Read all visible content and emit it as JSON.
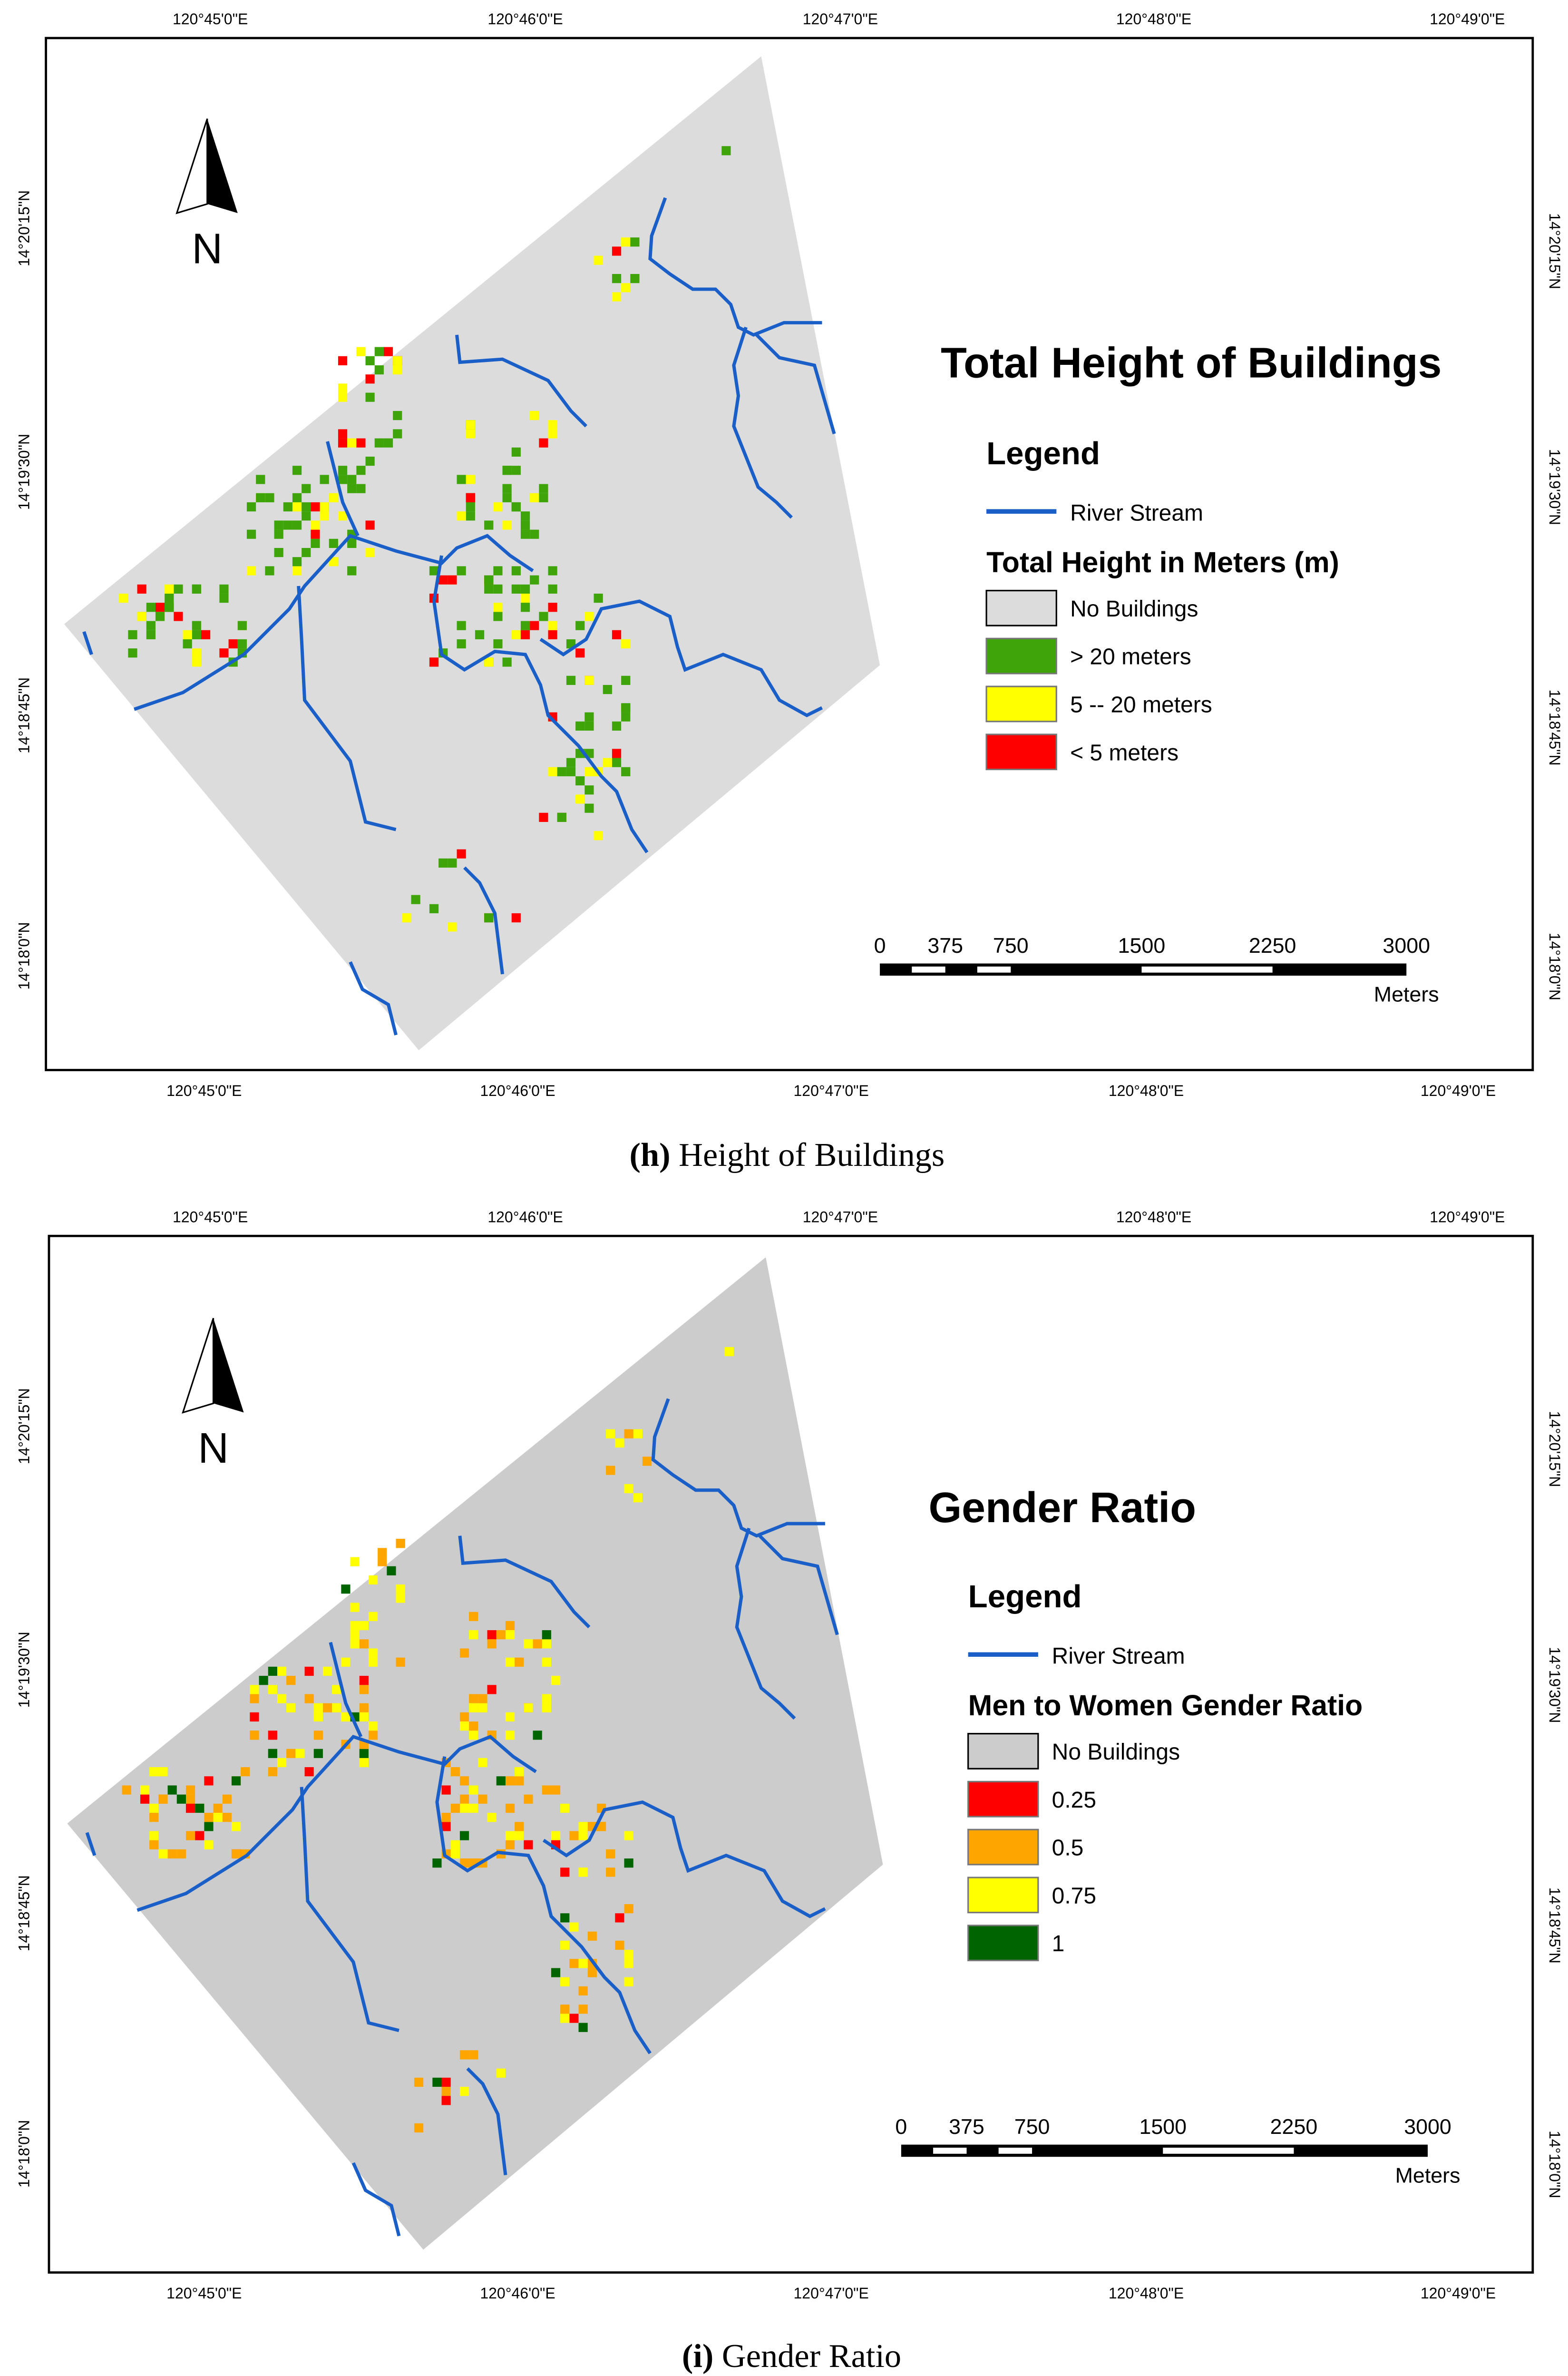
{
  "figures": [
    {
      "caption_letter": "(h)",
      "caption_text": " Height of Buildings",
      "title": "Total Height of Buildings",
      "legend_heading": "Legend",
      "river_label": "River Stream",
      "classes_heading": "Total Height in Meters (m)",
      "classes": [
        {
          "label": "No Buildings",
          "color": "#dcdcdc"
        },
        {
          "label": "> 20 meters",
          "color": "#3ea40a"
        },
        {
          "label": "5 -- 20 meters",
          "color": "#ffff00"
        },
        {
          "label": "< 5 meters",
          "color": "#ff0000"
        }
      ],
      "north_label": "N",
      "scale_ticks": [
        "0",
        "375",
        "750",
        "1500",
        "2250",
        "3000"
      ],
      "scale_unit": "Meters",
      "lon_labels": [
        "120°45'0\"E",
        "120°46'0\"E",
        "120°47'0\"E",
        "120°48'0\"E",
        "120°49'0\"E"
      ],
      "lat_labels": [
        "14°20'15\"N",
        "14°19'30\"N",
        "14°18'45\"N",
        "14°18'0\"N"
      ]
    },
    {
      "caption_letter": "(i)",
      "caption_text": " Gender Ratio",
      "title": "Gender Ratio",
      "legend_heading": "Legend",
      "river_label": "River Stream",
      "classes_heading": "Men to Women Gender Ratio",
      "classes": [
        {
          "label": "No Buildings",
          "color": "#cccccc"
        },
        {
          "label": "0.25",
          "color": "#ff0000"
        },
        {
          "label": "0.5",
          "color": "#ffa500"
        },
        {
          "label": "0.75",
          "color": "#ffff00"
        },
        {
          "label": "1",
          "color": "#006400"
        }
      ],
      "north_label": "N",
      "scale_ticks": [
        "0",
        "375",
        "750",
        "1500",
        "2250",
        "3000"
      ],
      "scale_unit": "Meters",
      "lon_labels": [
        "120°45'0\"E",
        "120°46'0\"E",
        "120°47'0\"E",
        "120°48'0\"E",
        "120°49'0\"E"
      ],
      "lat_labels": [
        "14°20'15\"N",
        "14°19'30\"N",
        "14°18'45\"N",
        "14°18'0\"N"
      ]
    }
  ],
  "colors": {
    "river": "#1a5fc8",
    "frame": "#000000"
  }
}
